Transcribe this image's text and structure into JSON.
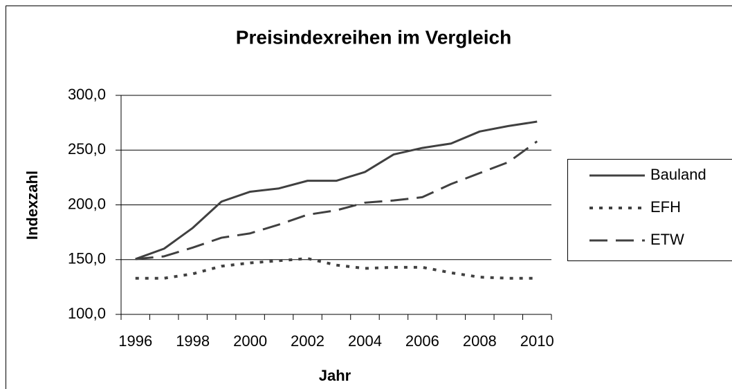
{
  "chart_data": {
    "type": "line",
    "title": "Preisindexreihen im Vergleich",
    "x_label": "Jahr",
    "y_label": "Indexzahl",
    "categories": [
      "1996",
      null,
      "1998",
      null,
      "2000",
      null,
      "2002",
      null,
      "2004",
      null,
      "2006",
      null,
      "2008",
      null,
      "2010"
    ],
    "series": [
      {
        "name": "Bauland",
        "color": "#404040",
        "dash": "solid",
        "values": [
          150.5,
          160,
          179,
          203,
          212,
          215,
          222,
          222,
          230,
          246,
          252,
          256,
          267,
          272,
          276
        ]
      },
      {
        "name": "EFH",
        "color": "#404040",
        "dash": "dotted",
        "values": [
          133,
          133,
          137,
          144,
          147,
          149,
          151,
          145,
          142,
          143,
          143,
          138,
          134,
          133,
          133
        ]
      },
      {
        "name": "ETW",
        "color": "#404040",
        "dash": "dashed",
        "values": [
          150.5,
          153,
          161,
          170,
          174,
          182,
          191,
          195,
          202,
          204,
          207,
          219,
          229,
          239,
          258
        ]
      }
    ],
    "ylim": [
      100,
      300
    ],
    "yticks": [
      {
        "value": 100,
        "label": "100,0"
      },
      {
        "value": 150,
        "label": "150,0"
      },
      {
        "value": 200,
        "label": "200,0"
      },
      {
        "value": 250,
        "label": "250,0"
      },
      {
        "value": 300,
        "label": "300,0"
      }
    ],
    "grid": true,
    "legend": "right"
  }
}
